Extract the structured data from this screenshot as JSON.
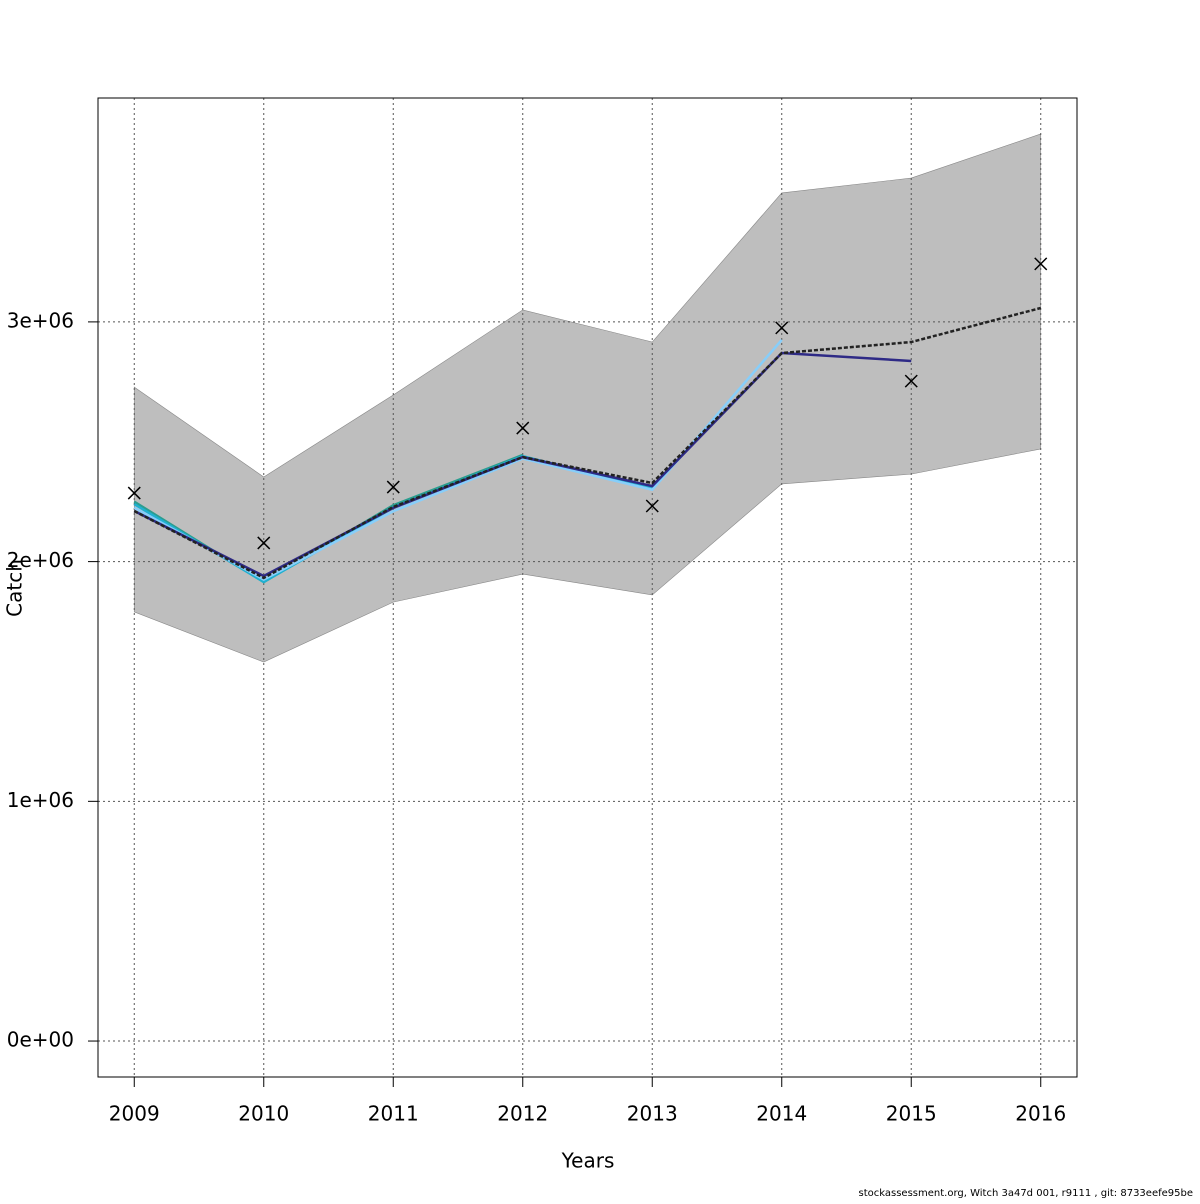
{
  "chart_data": {
    "type": "line",
    "xlabel": "Years",
    "ylabel": "Catch",
    "footer": "stockassessment.org, Witch 3a47d 001, r9111 , git: 8733eefe95be",
    "x": [
      2009,
      2010,
      2011,
      2012,
      2013,
      2014,
      2015,
      2016
    ],
    "band": {
      "color": "#bebebe",
      "upper": [
        2728000,
        2353000,
        2695000,
        3050000,
        2916000,
        3538000,
        3600000,
        3784000
      ],
      "lower": [
        1790000,
        1581000,
        1831000,
        1948000,
        1861000,
        2324000,
        2365000,
        2470000
      ]
    },
    "fit": {
      "color": "#222222",
      "values": [
        2211000,
        1932000,
        2228000,
        2436000,
        2328000,
        2870000,
        2916000,
        3058000
      ]
    },
    "observations": {
      "color": "#000000",
      "values": [
        2286000,
        2078000,
        2311000,
        2557000,
        2232000,
        2975000,
        2753000,
        3242000
      ]
    },
    "series": [
      {
        "color": "#2a9d8f",
        "values": [
          2250000,
          1915000,
          2235000,
          2445000,
          null,
          null,
          null,
          null
        ]
      },
      {
        "color": "#1fb0d0",
        "values": [
          2240000,
          1915000,
          2225000,
          2440000,
          2305000,
          null,
          null,
          null
        ]
      },
      {
        "color": "#87cefa",
        "values": [
          2225000,
          1925000,
          2210000,
          2430000,
          2300000,
          2925000,
          null,
          null
        ]
      },
      {
        "color": "#2e2a86",
        "values": [
          2211000,
          1940000,
          2224000,
          2436000,
          2315000,
          2870000,
          2837000,
          null
        ]
      }
    ],
    "xlim": [
      2008.72,
      2016.28
    ],
    "xticks": [
      2009,
      2010,
      2011,
      2012,
      2013,
      2014,
      2015,
      2016
    ],
    "ylim": [
      -150000,
      3934000
    ],
    "yticks": [
      {
        "value": 0,
        "label": "0e+00"
      },
      {
        "value": 1000000,
        "label": "1e+06"
      },
      {
        "value": 2000000,
        "label": "2e+06"
      },
      {
        "value": 3000000,
        "label": "3e+06"
      }
    ],
    "grid": true
  }
}
